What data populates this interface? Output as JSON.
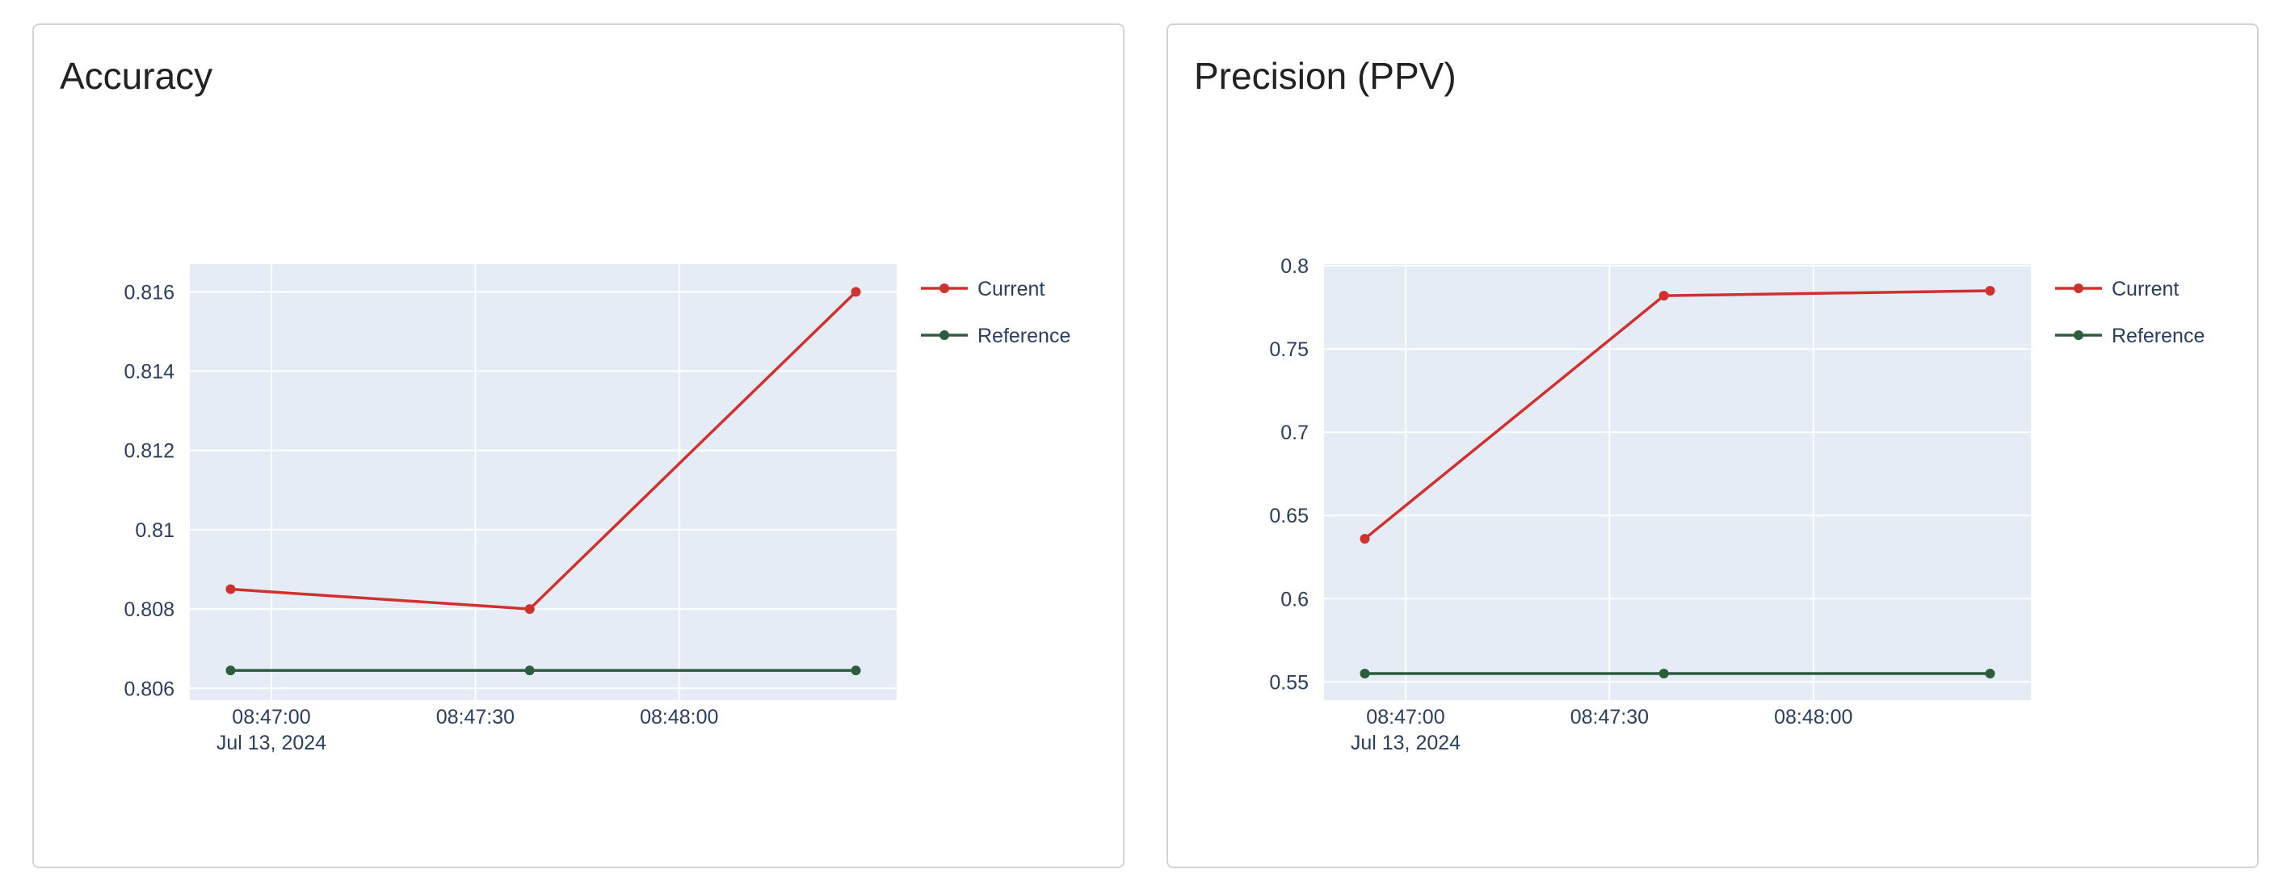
{
  "colors": {
    "current": "#d0312d",
    "reference": "#2d5d3e",
    "plot_bg": "#e5ecf6",
    "grid": "#ffffff",
    "text": "#2a3f5f"
  },
  "chart_data": [
    {
      "type": "line",
      "title": "Accuracy",
      "x": [
        "2024-07-13 08:46:54",
        "2024-07-13 08:47:38",
        "2024-07-13 08:48:26"
      ],
      "x_ticks": [
        "08:47:00",
        "08:47:30",
        "08:48:00"
      ],
      "x_tick_date": "Jul 13, 2024",
      "y_ticks": [
        "0.806",
        "0.808",
        "0.81",
        "0.812",
        "0.814",
        "0.816"
      ],
      "ylim": [
        0.8057,
        0.8167
      ],
      "series": [
        {
          "name": "Current",
          "values": [
            0.8085,
            0.808,
            0.816
          ]
        },
        {
          "name": "Reference",
          "values": [
            0.80645,
            0.80645,
            0.80645
          ]
        }
      ],
      "legend": "top-right",
      "grid": true
    },
    {
      "type": "line",
      "title": "Precision (PPV)",
      "x": [
        "2024-07-13 08:46:54",
        "2024-07-13 08:47:38",
        "2024-07-13 08:48:26"
      ],
      "x_ticks": [
        "08:47:00",
        "08:47:30",
        "08:48:00"
      ],
      "x_tick_date": "Jul 13, 2024",
      "y_ticks": [
        "0.55",
        "0.6",
        "0.65",
        "0.7",
        "0.75",
        "0.8"
      ],
      "ylim": [
        0.539,
        0.801
      ],
      "series": [
        {
          "name": "Current",
          "values": [
            0.636,
            0.782,
            0.785
          ]
        },
        {
          "name": "Reference",
          "values": [
            0.555,
            0.555,
            0.555
          ]
        }
      ],
      "legend": "top-right",
      "grid": true
    }
  ]
}
